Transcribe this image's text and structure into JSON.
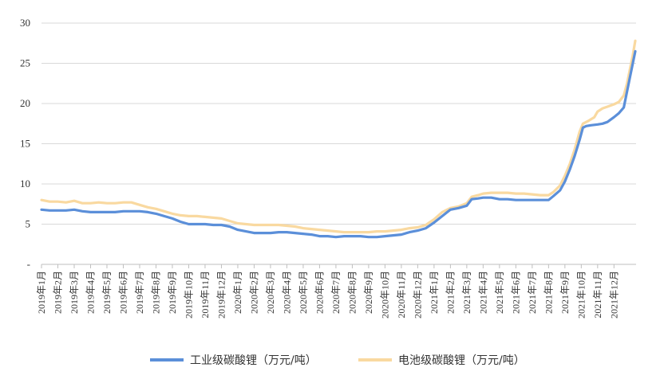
{
  "chart_data": {
    "type": "line",
    "title": "",
    "xlabel": "",
    "ylabel": "",
    "ylim": [
      0,
      30
    ],
    "y_ticks": [
      "-",
      "5",
      "10",
      "15",
      "20",
      "25",
      "30"
    ],
    "grid": "horizontal",
    "legend_position": "bottom",
    "categories": [
      "2019年1月",
      "2019年2月",
      "2019年3月",
      "2019年4月",
      "2019年5月",
      "2019年6月",
      "2019年7月",
      "2019年8月",
      "2019年9月",
      "2019年10月",
      "2019年11月",
      "2019年12月",
      "2020年1月",
      "2020年2月",
      "2020年3月",
      "2020年4月",
      "2020年5月",
      "2020年6月",
      "2020年7月",
      "2020年8月",
      "2020年9月",
      "2020年10月",
      "2020年11月",
      "2020年12月",
      "2021年1月",
      "2021年2月",
      "2021年3月",
      "2021年4月",
      "2021年5月",
      "2021年6月",
      "2021年7月",
      "2021年8月",
      "2021年9月",
      "2021年10月",
      "2021年11月",
      "2021年12月"
    ],
    "series": [
      {
        "name": "工业级碳酸锂（万元/吨）",
        "color": "#5b8fd9",
        "points": [
          [
            0,
            6.8
          ],
          [
            0.5,
            6.7
          ],
          [
            1,
            6.7
          ],
          [
            1.5,
            6.7
          ],
          [
            2,
            6.8
          ],
          [
            2.5,
            6.6
          ],
          [
            3,
            6.5
          ],
          [
            3.5,
            6.5
          ],
          [
            4,
            6.5
          ],
          [
            4.5,
            6.5
          ],
          [
            5,
            6.6
          ],
          [
            5.5,
            6.6
          ],
          [
            6,
            6.6
          ],
          [
            6.5,
            6.5
          ],
          [
            7,
            6.3
          ],
          [
            7.5,
            6.0
          ],
          [
            8,
            5.7
          ],
          [
            8.5,
            5.3
          ],
          [
            9,
            5.0
          ],
          [
            9.5,
            5.0
          ],
          [
            10,
            5.0
          ],
          [
            10.5,
            4.9
          ],
          [
            11,
            4.9
          ],
          [
            11.5,
            4.7
          ],
          [
            12,
            4.3
          ],
          [
            12.5,
            4.1
          ],
          [
            13,
            3.9
          ],
          [
            13.5,
            3.9
          ],
          [
            14,
            3.9
          ],
          [
            14.5,
            4.0
          ],
          [
            15,
            4.0
          ],
          [
            15.5,
            3.9
          ],
          [
            16,
            3.8
          ],
          [
            16.5,
            3.7
          ],
          [
            17,
            3.5
          ],
          [
            17.5,
            3.5
          ],
          [
            18,
            3.4
          ],
          [
            18.5,
            3.5
          ],
          [
            19,
            3.5
          ],
          [
            19.5,
            3.5
          ],
          [
            20,
            3.4
          ],
          [
            20.5,
            3.4
          ],
          [
            21,
            3.5
          ],
          [
            21.5,
            3.6
          ],
          [
            22,
            3.7
          ],
          [
            22.5,
            4.0
          ],
          [
            23,
            4.2
          ],
          [
            23.5,
            4.5
          ],
          [
            24,
            5.2
          ],
          [
            24.5,
            6.0
          ],
          [
            25,
            6.8
          ],
          [
            25.5,
            7.0
          ],
          [
            26,
            7.3
          ],
          [
            26.3,
            8.1
          ],
          [
            26.7,
            8.2
          ],
          [
            27,
            8.3
          ],
          [
            27.5,
            8.3
          ],
          [
            28,
            8.1
          ],
          [
            28.5,
            8.1
          ],
          [
            29,
            8.0
          ],
          [
            29.5,
            8.0
          ],
          [
            30,
            8.0
          ],
          [
            30.5,
            8.0
          ],
          [
            31,
            8.0
          ],
          [
            31.3,
            8.5
          ],
          [
            31.7,
            9.2
          ],
          [
            32,
            10.3
          ],
          [
            32.3,
            11.8
          ],
          [
            32.6,
            13.5
          ],
          [
            32.9,
            15.5
          ],
          [
            33.1,
            17.0
          ],
          [
            33.3,
            17.2
          ],
          [
            33.6,
            17.3
          ],
          [
            34,
            17.4
          ],
          [
            34.3,
            17.5
          ],
          [
            34.6,
            17.7
          ],
          [
            35,
            18.3
          ],
          [
            35.3,
            18.8
          ],
          [
            35.6,
            19.5
          ],
          [
            35.8,
            21.5
          ],
          [
            36,
            23.5
          ],
          [
            36.15,
            25.0
          ],
          [
            36.3,
            26.5
          ]
        ]
      },
      {
        "name": "电池级碳酸锂（万元/吨）",
        "color": "#f9d9a0",
        "points": [
          [
            0,
            8.0
          ],
          [
            0.5,
            7.8
          ],
          [
            1,
            7.8
          ],
          [
            1.5,
            7.7
          ],
          [
            2,
            7.9
          ],
          [
            2.5,
            7.6
          ],
          [
            3,
            7.6
          ],
          [
            3.5,
            7.7
          ],
          [
            4,
            7.6
          ],
          [
            4.5,
            7.6
          ],
          [
            5,
            7.7
          ],
          [
            5.5,
            7.7
          ],
          [
            6,
            7.4
          ],
          [
            6.5,
            7.1
          ],
          [
            7,
            6.9
          ],
          [
            7.5,
            6.6
          ],
          [
            8,
            6.3
          ],
          [
            8.5,
            6.1
          ],
          [
            9,
            6.0
          ],
          [
            9.5,
            6.0
          ],
          [
            10,
            5.9
          ],
          [
            10.5,
            5.8
          ],
          [
            11,
            5.7
          ],
          [
            11.5,
            5.4
          ],
          [
            12,
            5.1
          ],
          [
            12.5,
            5.0
          ],
          [
            13,
            4.9
          ],
          [
            13.5,
            4.9
          ],
          [
            14,
            4.9
          ],
          [
            14.5,
            4.9
          ],
          [
            15,
            4.8
          ],
          [
            15.5,
            4.7
          ],
          [
            16,
            4.5
          ],
          [
            16.5,
            4.4
          ],
          [
            17,
            4.3
          ],
          [
            17.5,
            4.2
          ],
          [
            18,
            4.1
          ],
          [
            18.5,
            4.0
          ],
          [
            19,
            4.0
          ],
          [
            19.5,
            4.0
          ],
          [
            20,
            4.0
          ],
          [
            20.5,
            4.1
          ],
          [
            21,
            4.1
          ],
          [
            21.5,
            4.2
          ],
          [
            22,
            4.3
          ],
          [
            22.5,
            4.5
          ],
          [
            23,
            4.6
          ],
          [
            23.5,
            4.9
          ],
          [
            24,
            5.6
          ],
          [
            24.5,
            6.5
          ],
          [
            25,
            7.0
          ],
          [
            25.5,
            7.2
          ],
          [
            26,
            7.6
          ],
          [
            26.3,
            8.4
          ],
          [
            26.7,
            8.6
          ],
          [
            27,
            8.8
          ],
          [
            27.5,
            8.9
          ],
          [
            28,
            8.9
          ],
          [
            28.5,
            8.9
          ],
          [
            29,
            8.8
          ],
          [
            29.5,
            8.8
          ],
          [
            30,
            8.7
          ],
          [
            30.5,
            8.6
          ],
          [
            31,
            8.6
          ],
          [
            31.3,
            9.0
          ],
          [
            31.7,
            9.8
          ],
          [
            32,
            11.0
          ],
          [
            32.3,
            12.5
          ],
          [
            32.6,
            14.3
          ],
          [
            32.9,
            16.5
          ],
          [
            33.1,
            17.5
          ],
          [
            33.4,
            17.8
          ],
          [
            33.8,
            18.3
          ],
          [
            34,
            19.0
          ],
          [
            34.3,
            19.4
          ],
          [
            34.6,
            19.6
          ],
          [
            35,
            19.9
          ],
          [
            35.3,
            20.2
          ],
          [
            35.6,
            21.0
          ],
          [
            35.8,
            22.5
          ],
          [
            36,
            24.5
          ],
          [
            36.15,
            26.0
          ],
          [
            36.3,
            27.8
          ]
        ]
      }
    ]
  }
}
